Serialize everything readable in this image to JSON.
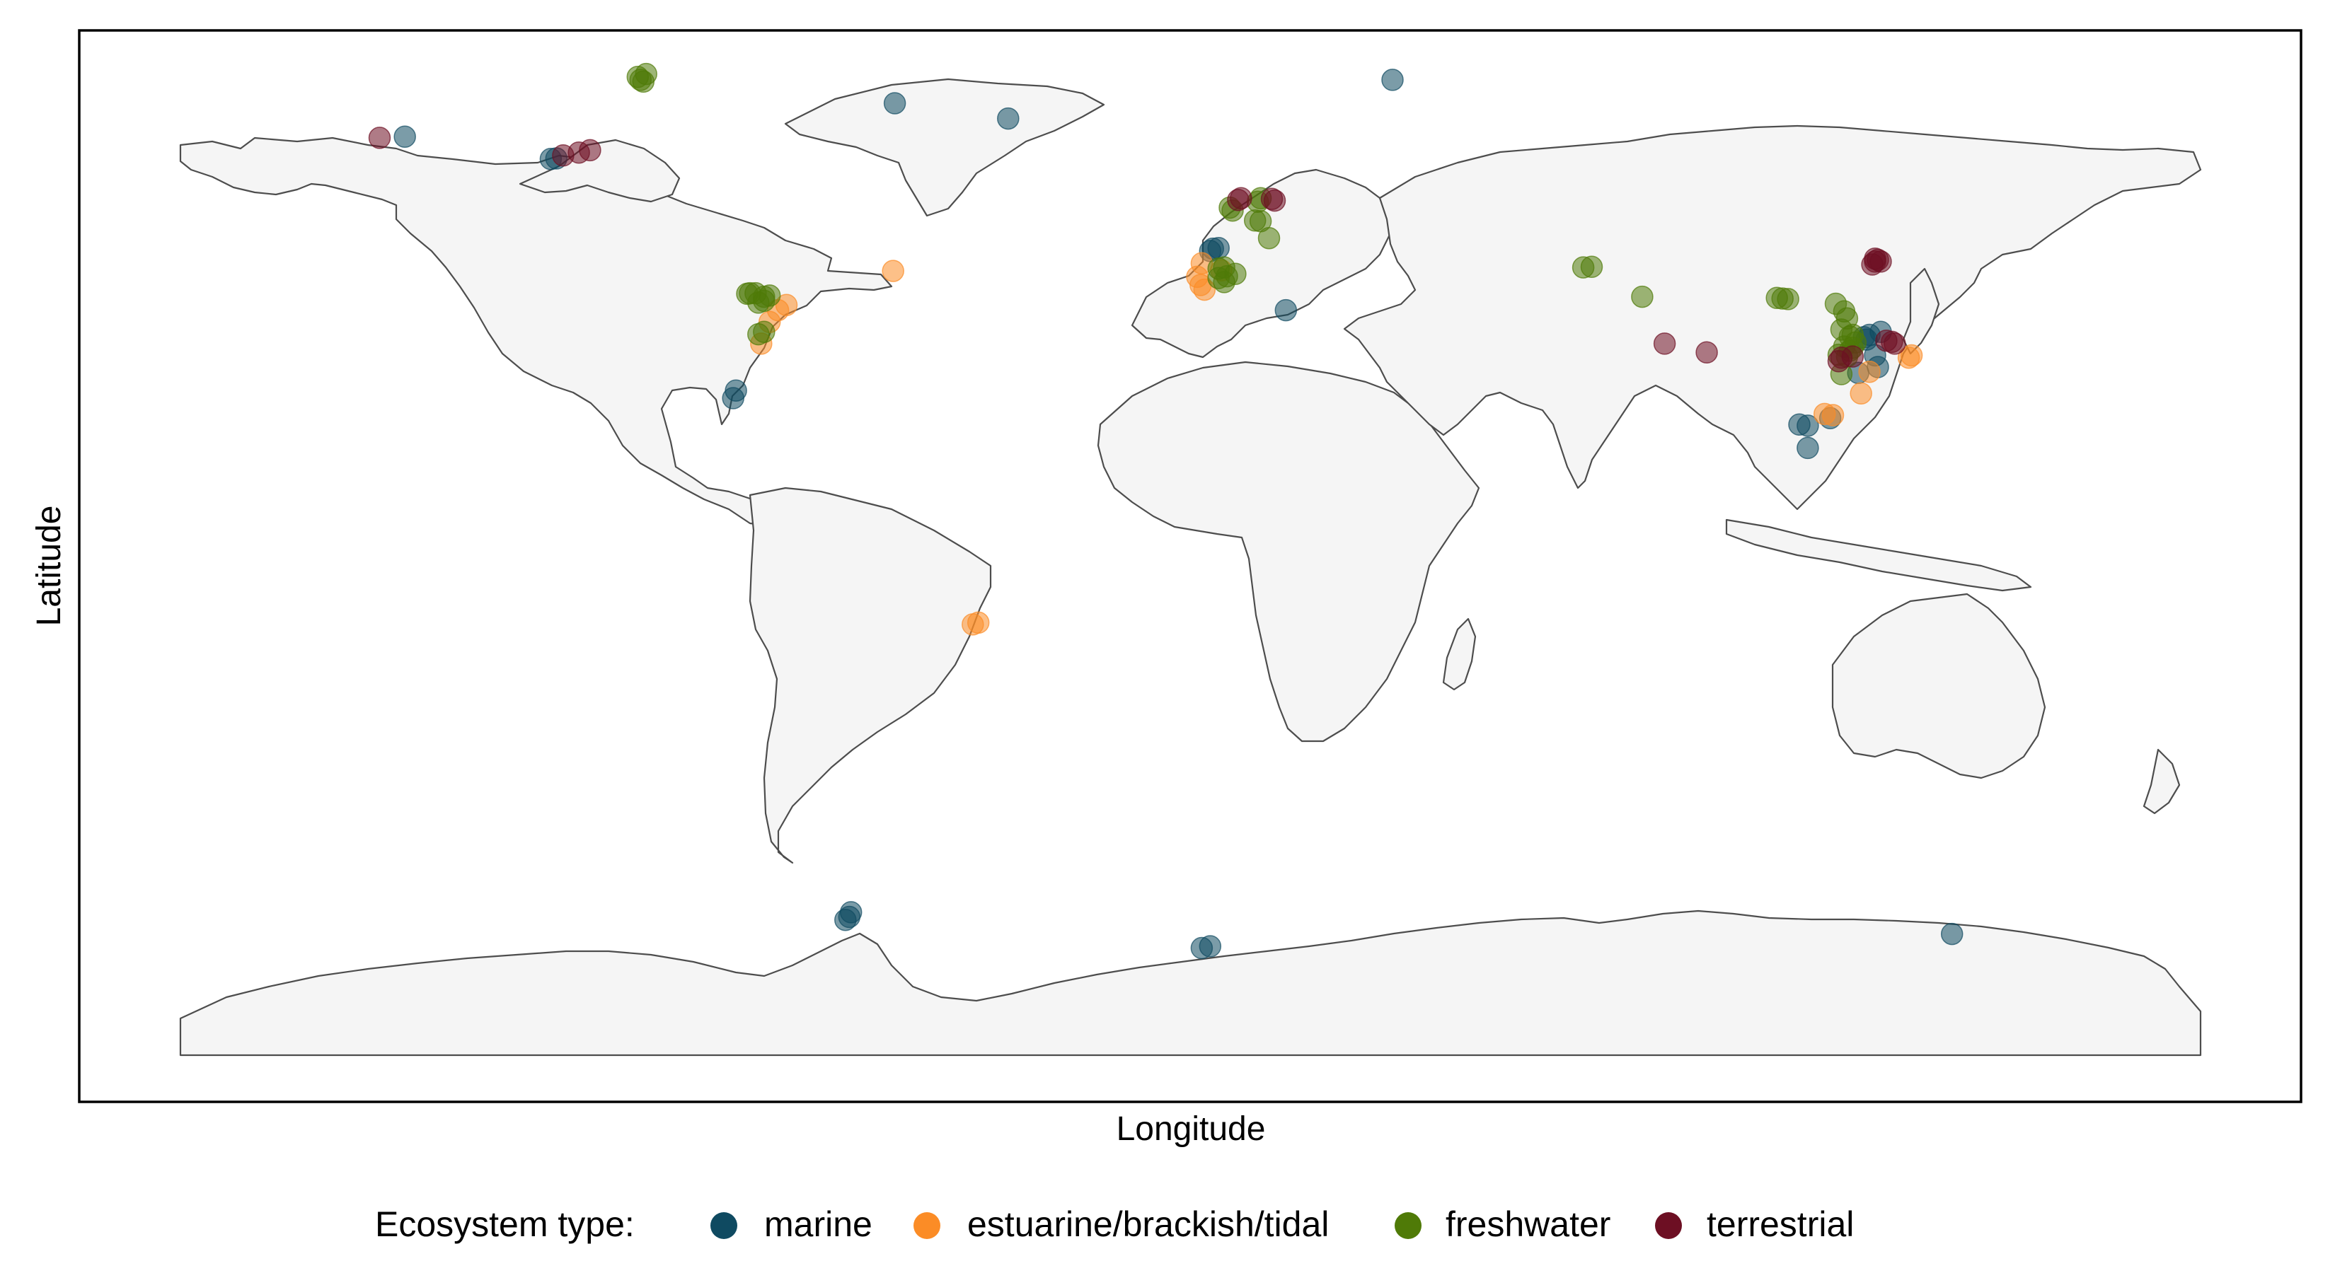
{
  "chart_data": {
    "type": "scatter",
    "xlabel": "Longitude",
    "ylabel": "Latitude",
    "xlim": [
      -180,
      180
    ],
    "ylim": [
      -90,
      90
    ],
    "grid": false,
    "legend_placement": "bottom",
    "legend": {
      "title": "Ecosystem type:",
      "entries": [
        {
          "key": "marine",
          "label": "marine",
          "color": "#0f4a61"
        },
        {
          "key": "estuarine",
          "label": "estuarine/brackish/tidal",
          "color": "#fb8c26"
        },
        {
          "key": "freshwater",
          "label": "freshwater",
          "color": "#4f7a07"
        },
        {
          "key": "terrestrial",
          "label": "terrestrial",
          "color": "#6d0f23"
        }
      ]
    },
    "point_opacity": 0.55,
    "series": [
      {
        "key": "marine",
        "points": [
          [
            -140.0,
            70.3
          ],
          [
            -114.0,
            66.5
          ],
          [
            -113.0,
            66.6
          ],
          [
            -32.5,
            73.4
          ],
          [
            -52.7,
            76.0
          ],
          [
            -81.0,
            27.0
          ],
          [
            -81.5,
            25.7
          ],
          [
            4.0,
            51.2
          ],
          [
            5.0,
            51.3
          ],
          [
            3.5,
            50.8
          ],
          [
            17.0,
            40.7
          ],
          [
            36.0,
            80.0
          ],
          [
            -60.5,
            -62.0
          ],
          [
            -60.8,
            -62.8
          ],
          [
            -61.5,
            -63.3
          ],
          [
            2.0,
            -68.1
          ],
          [
            3.5,
            -67.8
          ],
          [
            135.7,
            -65.7
          ],
          [
            108.5,
            21.2
          ],
          [
            110.0,
            21.0
          ],
          [
            114.0,
            22.3
          ],
          [
            110.0,
            17.2
          ],
          [
            120.0,
            36.1
          ],
          [
            121.0,
            36.5
          ],
          [
            120.5,
            35.7
          ],
          [
            122.0,
            33.0
          ],
          [
            122.5,
            31.0
          ],
          [
            123.0,
            37.0
          ],
          [
            119.0,
            30.0
          ]
        ]
      },
      {
        "key": "estuarine",
        "points": [
          [
            -53.0,
            47.4
          ],
          [
            -73.5,
            40.7
          ],
          [
            -72.0,
            41.6
          ],
          [
            -75.0,
            38.7
          ],
          [
            -76.5,
            35.0
          ],
          [
            -38.8,
            -12.9
          ],
          [
            -37.8,
            -12.6
          ],
          [
            2.0,
            48.7
          ],
          [
            1.2,
            46.4
          ],
          [
            1.8,
            45.0
          ],
          [
            2.5,
            44.2
          ],
          [
            5.5,
            47.5
          ],
          [
            113.0,
            23.0
          ],
          [
            114.5,
            22.8
          ],
          [
            119.5,
            26.5
          ],
          [
            128.0,
            32.6
          ],
          [
            128.5,
            33.0
          ],
          [
            121.0,
            30.2
          ]
        ]
      },
      {
        "key": "freshwater",
        "points": [
          [
            -98.0,
            80.0
          ],
          [
            -97.0,
            81.0
          ],
          [
            -98.5,
            80.5
          ],
          [
            -97.5,
            79.7
          ],
          [
            -79.0,
            43.5
          ],
          [
            -78.5,
            43.6
          ],
          [
            -77.5,
            43.6
          ],
          [
            -76.0,
            43.0
          ],
          [
            -77.0,
            42.0
          ],
          [
            -76.0,
            42.3
          ],
          [
            -75.0,
            43.2
          ],
          [
            -77.0,
            36.6
          ],
          [
            -76.0,
            37.0
          ],
          [
            7.0,
            58.2
          ],
          [
            7.5,
            57.7
          ],
          [
            12.5,
            59.8
          ],
          [
            12.0,
            59.2
          ],
          [
            12.5,
            55.9
          ],
          [
            11.5,
            56.0
          ],
          [
            5.0,
            47.8
          ],
          [
            6.0,
            48.0
          ],
          [
            6.5,
            46.5
          ],
          [
            6.0,
            45.5
          ],
          [
            8.0,
            46.9
          ],
          [
            5.0,
            46.2
          ],
          [
            14.0,
            53.0
          ],
          [
            70.0,
            48.0
          ],
          [
            71.5,
            48.1
          ],
          [
            80.5,
            43.0
          ],
          [
            104.5,
            42.8
          ],
          [
            105.5,
            42.7
          ],
          [
            106.5,
            42.6
          ],
          [
            115.0,
            41.8
          ],
          [
            116.5,
            40.5
          ],
          [
            117.0,
            39.3
          ],
          [
            116.0,
            37.4
          ],
          [
            117.5,
            36.2
          ],
          [
            118.0,
            36.5
          ],
          [
            118.5,
            35.2
          ],
          [
            116.5,
            34.5
          ],
          [
            117.5,
            33.8
          ],
          [
            118.0,
            34.3
          ],
          [
            117.0,
            32.8
          ],
          [
            115.5,
            33.1
          ],
          [
            116.0,
            29.8
          ]
        ]
      },
      {
        "key": "terrestrial",
        "points": [
          [
            -144.5,
            70.1
          ],
          [
            -111.8,
            67.1
          ],
          [
            -109.0,
            67.6
          ],
          [
            -107.0,
            68.0
          ],
          [
            8.5,
            59.5
          ],
          [
            9.0,
            59.8
          ],
          [
            14.5,
            59.7
          ],
          [
            15.0,
            59.4
          ],
          [
            84.5,
            35.0
          ],
          [
            92.0,
            33.5
          ],
          [
            115.5,
            32.0
          ],
          [
            116.0,
            32.6
          ],
          [
            118.0,
            32.8
          ],
          [
            121.5,
            48.5
          ],
          [
            122.0,
            49.0
          ],
          [
            122.5,
            49.3
          ],
          [
            122.0,
            49.5
          ],
          [
            123.0,
            49.0
          ],
          [
            124.0,
            35.5
          ],
          [
            125.0,
            35.3
          ],
          [
            125.5,
            35.0
          ]
        ]
      }
    ]
  },
  "map": {
    "land_color": "#f5f5f5",
    "border_color": "#4d4d4d",
    "frame_color": "#000000",
    "background": "#ffffff"
  }
}
